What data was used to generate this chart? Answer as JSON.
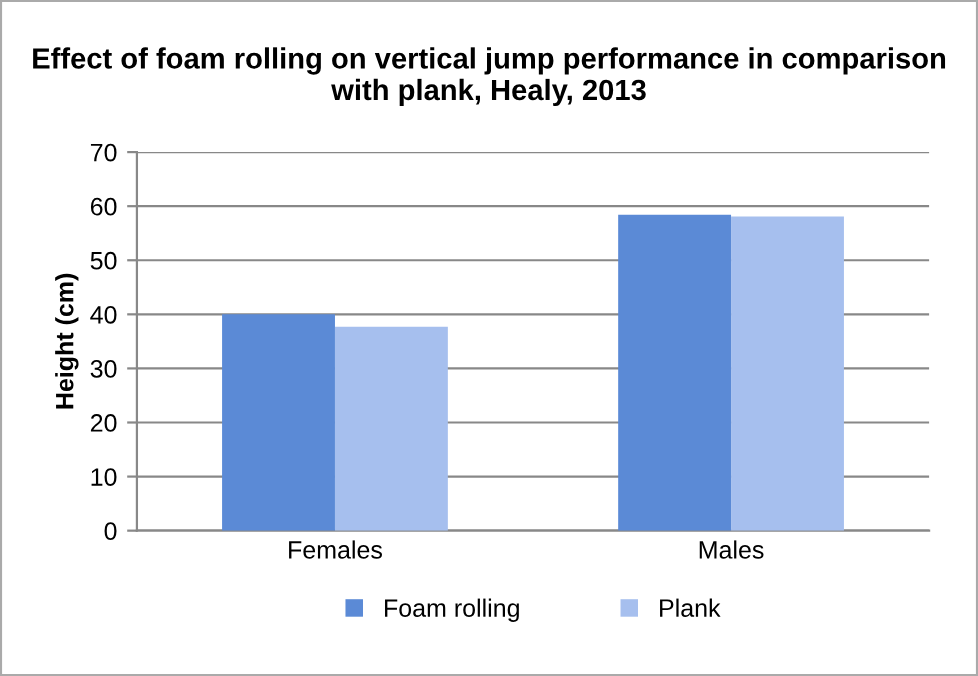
{
  "chart_data": {
    "type": "bar",
    "title": "Effect of foam rolling on vertical jump performance in comparison with plank, Healy, 2013",
    "ylabel": "Height (cm)",
    "categories": [
      "Females",
      "Males"
    ],
    "series": [
      {
        "name": "Foam rolling",
        "color": "#5b8ad6",
        "values": [
          40,
          58.4
        ]
      },
      {
        "name": "Plank",
        "color": "#a6bfee",
        "values": [
          37.7,
          58.1
        ]
      }
    ],
    "ylim": [
      0,
      70
    ],
    "yticks": [
      0,
      10,
      20,
      30,
      40,
      50,
      60,
      70
    ],
    "grid": "y",
    "legend": "bottom"
  }
}
